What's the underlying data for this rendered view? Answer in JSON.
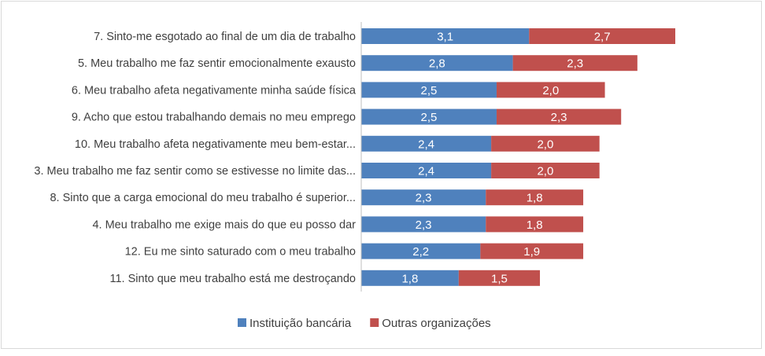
{
  "chart_data": {
    "type": "bar",
    "orientation": "horizontal",
    "stacked": true,
    "categories": [
      "7. Sinto-me esgotado ao final de um dia de trabalho",
      "5. Meu trabalho me faz sentir emocionalmente exausto",
      "6. Meu trabalho afeta negativamente minha saúde física",
      "9. Acho que estou trabalhando demais no meu emprego",
      "10. Meu trabalho afeta negativamente meu bem-estar...",
      "3. Meu trabalho me faz sentir como se estivesse no limite das...",
      "8. Sinto que a carga emocional do meu trabalho é superior...",
      "4. Meu trabalho me exige mais do que eu posso dar",
      "12. Eu me sinto saturado com o meu trabalho",
      "11. Sinto que meu trabalho está me destroçando"
    ],
    "series": [
      {
        "name": "Instituição bancária",
        "color": "#4F81BD",
        "values": [
          3.1,
          2.8,
          2.5,
          2.5,
          2.4,
          2.4,
          2.3,
          2.3,
          2.2,
          1.8
        ]
      },
      {
        "name": "Outras organizações",
        "color": "#C0504D",
        "values": [
          2.7,
          2.3,
          2.0,
          2.3,
          2.0,
          2.0,
          1.8,
          1.8,
          1.9,
          1.5
        ]
      }
    ],
    "xlim": [
      0,
      5.8
    ],
    "grid": false,
    "legend": "bottom",
    "data_labels": true,
    "decimal_separator": ","
  }
}
